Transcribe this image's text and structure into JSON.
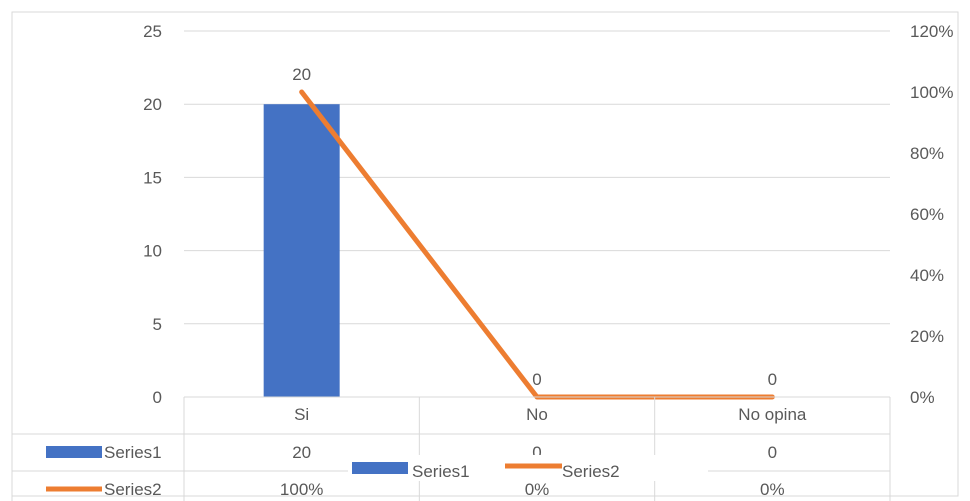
{
  "chart_data": {
    "type": "bar",
    "categories": [
      "Si",
      "No",
      "No opina"
    ],
    "series": [
      {
        "name": "Series1",
        "kind": "bar",
        "axis": "left",
        "values": [
          20,
          0,
          0
        ],
        "display": [
          "20",
          "0",
          "0"
        ],
        "color": "#4472C4"
      },
      {
        "name": "Series2",
        "kind": "line",
        "axis": "right",
        "values": [
          1.0,
          0,
          0
        ],
        "display": [
          "100%",
          "0%",
          "0%"
        ],
        "color": "#ED7D31"
      }
    ],
    "data_labels": [
      "20",
      "0",
      "0"
    ],
    "y_left": {
      "min": 0,
      "max": 25,
      "ticks": [
        "0",
        "5",
        "10",
        "15",
        "20",
        "25"
      ]
    },
    "y_right": {
      "min": 0,
      "max": 1.2,
      "ticks": [
        "0%",
        "20%",
        "40%",
        "60%",
        "80%",
        "100%",
        "120%"
      ]
    },
    "grid": true,
    "legend_position": "bottom",
    "data_table": true
  }
}
